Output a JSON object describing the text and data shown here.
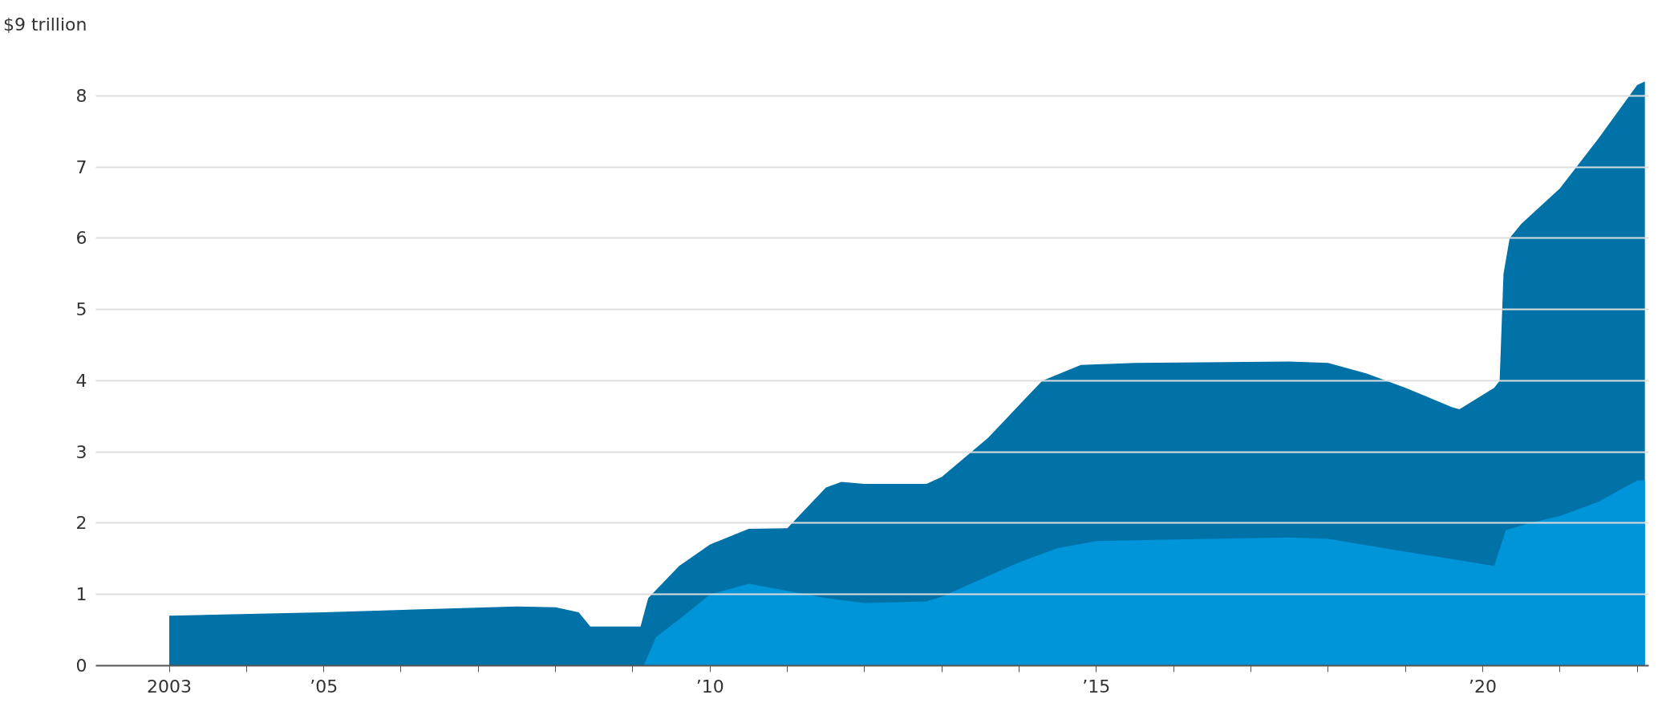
{
  "chart_data": {
    "type": "area",
    "xlim": [
      2002.05,
      2022.15
    ],
    "ylim": [
      0,
      9
    ],
    "xticks": [
      {
        "value": 2003,
        "label": "2003"
      },
      {
        "value": 2004,
        "label": null
      },
      {
        "value": 2005,
        "label": "’05"
      },
      {
        "value": 2006,
        "label": null
      },
      {
        "value": 2007,
        "label": null
      },
      {
        "value": 2008,
        "label": null
      },
      {
        "value": 2009,
        "label": null
      },
      {
        "value": 2010,
        "label": "’10"
      },
      {
        "value": 2011,
        "label": null
      },
      {
        "value": 2012,
        "label": null
      },
      {
        "value": 2013,
        "label": null
      },
      {
        "value": 2014,
        "label": null
      },
      {
        "value": 2015,
        "label": "’15"
      },
      {
        "value": 2016,
        "label": null
      },
      {
        "value": 2017,
        "label": null
      },
      {
        "value": 2018,
        "label": null
      },
      {
        "value": 2019,
        "label": null
      },
      {
        "value": 2020,
        "label": "’20"
      },
      {
        "value": 2021,
        "label": null
      },
      {
        "value": 2022,
        "label": null
      }
    ],
    "yticks": [
      0,
      1,
      2,
      3,
      4,
      5,
      6,
      7,
      8,
      {
        "value": 9,
        "label": "$9 trillion"
      }
    ],
    "grid": "y",
    "series": [
      {
        "color": "#0072a8",
        "x": [
          2003.0,
          2005.0,
          2007.5,
          2008.0,
          2008.3,
          2008.45,
          2009.1,
          2009.2,
          2009.6,
          2010.0,
          2010.5,
          2011.0,
          2011.5,
          2011.7,
          2012.0,
          2012.8,
          2013.0,
          2013.6,
          2014.3,
          2014.8,
          2015.5,
          2017.5,
          2018.0,
          2018.5,
          2019.0,
          2019.6,
          2019.7,
          2020.15,
          2020.22,
          2020.27,
          2020.35,
          2020.5,
          2021.0,
          2021.5,
          2022.0,
          2022.1
        ],
        "values": [
          0.7,
          0.75,
          0.83,
          0.82,
          0.75,
          0.55,
          0.55,
          0.95,
          1.4,
          1.7,
          1.92,
          1.93,
          2.5,
          2.58,
          2.55,
          2.55,
          2.65,
          3.2,
          4.0,
          4.22,
          4.25,
          4.27,
          4.25,
          4.1,
          3.9,
          3.63,
          3.6,
          3.9,
          4.0,
          5.5,
          6.0,
          6.2,
          6.7,
          7.4,
          8.15,
          8.2
        ]
      },
      {
        "color": "#0094d8",
        "x": [
          2009.14,
          2009.3,
          2009.6,
          2010.0,
          2010.5,
          2011.0,
          2011.5,
          2012.0,
          2012.8,
          2013.0,
          2014.0,
          2014.5,
          2015.0,
          2016.0,
          2017.5,
          2018.0,
          2019.0,
          2020.15,
          2020.3,
          2020.6,
          2021.0,
          2021.5,
          2022.0,
          2022.1
        ],
        "values": [
          0,
          0.4,
          0.65,
          1.0,
          1.15,
          1.05,
          0.95,
          0.88,
          0.9,
          0.97,
          1.45,
          1.65,
          1.75,
          1.77,
          1.8,
          1.78,
          1.6,
          1.4,
          1.9,
          2.0,
          2.1,
          2.3,
          2.6,
          2.6
        ]
      }
    ]
  }
}
